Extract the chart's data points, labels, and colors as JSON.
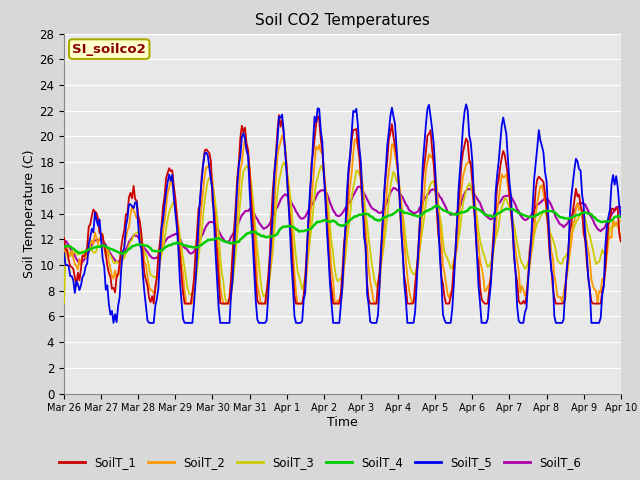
{
  "title": "Soil CO2 Temperatures",
  "xlabel": "Time",
  "ylabel": "Soil Temperature (C)",
  "ylim": [
    0,
    28
  ],
  "yticks": [
    0,
    2,
    4,
    6,
    8,
    10,
    12,
    14,
    16,
    18,
    20,
    22,
    24,
    26,
    28
  ],
  "legend_label": "SI_soilco2",
  "series_colors": {
    "SoilT_1": "#cc0000",
    "SoilT_2": "#ff9900",
    "SoilT_3": "#cccc00",
    "SoilT_4": "#00cc00",
    "SoilT_5": "#0000ee",
    "SoilT_6": "#aa00aa"
  },
  "fig_facecolor": "#d8d8d8",
  "ax_facecolor": "#e8e8e8",
  "x_tick_labels": [
    "Mar 26",
    "Mar 27",
    "Mar 28",
    "Mar 29",
    "Mar 30",
    "Mar 31",
    "Apr 1",
    "Apr 2",
    "Apr 3",
    "Apr 4",
    "Apr 5",
    "Apr 6",
    "Apr 7",
    "Apr 8",
    "Apr 9",
    "Apr 10"
  ],
  "x_tick_positions": [
    0,
    24,
    48,
    72,
    96,
    120,
    144,
    168,
    192,
    216,
    240,
    264,
    288,
    312,
    336,
    360
  ]
}
